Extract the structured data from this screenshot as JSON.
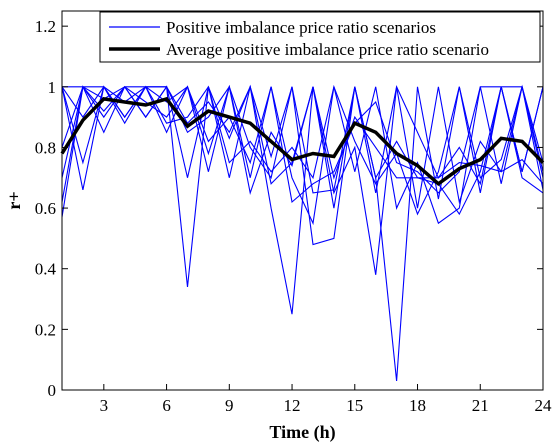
{
  "chart_data": {
    "type": "line",
    "xlabel": "Time (h)",
    "ylabel": "r+",
    "xlim": [
      1,
      24
    ],
    "ylim": [
      0,
      1.25
    ],
    "xticks": [
      3,
      6,
      9,
      12,
      15,
      18,
      21,
      24
    ],
    "xtick_labels": [
      "3",
      "6",
      "9",
      "12",
      "15",
      "18",
      "21",
      "24"
    ],
    "yticks": [
      0,
      0.2,
      0.4,
      0.6,
      0.8,
      1,
      1.2
    ],
    "ytick_labels": [
      "0",
      "0.2",
      "0.4",
      "0.6",
      "0.8",
      "1",
      "1.2"
    ],
    "grid": false,
    "legend_position": "top-right",
    "x": [
      1,
      2,
      3,
      4,
      5,
      6,
      7,
      8,
      9,
      10,
      11,
      12,
      13,
      14,
      15,
      16,
      17,
      18,
      19,
      20,
      21,
      22,
      23,
      24
    ],
    "scenario_color": "#0000ff",
    "average_color": "#000000",
    "legend": {
      "scenarios_label": "Positive imbalance price ratio scenarios",
      "average_label": "Average positive imbalance price ratio scenario"
    },
    "series": [
      {
        "name": "Positive imbalance price ratio scenarios",
        "values": [
          0.57,
          1.0,
          0.9,
          1.0,
          0.9,
          1.0,
          0.34,
          1.0,
          0.83,
          1.0,
          0.6,
          0.25,
          1.0,
          0.6,
          1.0,
          0.7,
          0.03,
          1.0,
          0.63,
          1.0,
          0.65,
          1.0,
          0.7,
          0.65
        ]
      },
      {
        "name": "",
        "values": [
          1.0,
          0.75,
          1.0,
          0.88,
          1.0,
          0.85,
          1.0,
          0.78,
          1.0,
          0.7,
          1.0,
          0.7,
          0.55,
          1.0,
          0.72,
          1.0,
          0.6,
          0.75,
          0.55,
          0.6,
          1.0,
          0.68,
          1.0,
          0.75
        ]
      },
      {
        "name": "",
        "values": [
          0.7,
          1.0,
          0.85,
          1.0,
          0.95,
          0.9,
          1.0,
          0.82,
          0.9,
          0.75,
          1.0,
          0.62,
          0.68,
          0.72,
          0.88,
          0.95,
          0.75,
          0.72,
          0.65,
          0.72,
          1.0,
          1.0,
          1.0,
          0.7
        ]
      },
      {
        "name": "",
        "values": [
          1.0,
          0.66,
          1.0,
          0.9,
          1.0,
          0.88,
          0.9,
          1.0,
          0.7,
          1.0,
          0.77,
          1.0,
          0.48,
          0.5,
          1.0,
          0.65,
          1.0,
          0.85,
          0.7,
          0.8,
          0.68,
          1.0,
          0.72,
          1.0
        ]
      },
      {
        "name": "",
        "values": [
          0.62,
          1.0,
          0.92,
          1.0,
          1.0,
          1.0,
          0.85,
          0.9,
          1.0,
          0.65,
          0.85,
          0.74,
          1.0,
          0.65,
          0.8,
          0.38,
          1.0,
          0.6,
          1.0,
          0.62,
          0.82,
          0.72,
          0.76,
          0.68
        ]
      },
      {
        "name": "",
        "values": [
          1.0,
          0.9,
          1.0,
          0.95,
          1.0,
          1.0,
          0.7,
          1.0,
          0.75,
          0.82,
          0.72,
          0.8,
          0.7,
          1.0,
          0.82,
          0.68,
          0.78,
          0.58,
          0.72,
          1.0,
          0.7,
          0.76,
          1.0,
          0.72
        ]
      },
      {
        "name": "",
        "values": [
          0.8,
          1.0,
          1.0,
          0.9,
          1.0,
          0.95,
          1.0,
          0.72,
          1.0,
          0.8,
          0.7,
          1.0,
          0.65,
          0.66,
          1.0,
          0.7,
          0.82,
          0.7,
          0.68,
          0.58,
          0.72,
          1.0,
          0.72,
          1.0
        ]
      },
      {
        "name": "",
        "values": [
          1.0,
          1.0,
          0.96,
          1.0,
          0.9,
          1.0,
          0.88,
          0.95,
          0.85,
          1.0,
          0.68,
          0.75,
          1.0,
          0.7,
          0.9,
          0.8,
          0.7,
          0.7,
          0.7,
          0.75,
          0.74,
          0.72,
          1.0,
          0.66
        ]
      },
      {
        "name": "Average positive imbalance price ratio scenario",
        "values": [
          0.78,
          0.89,
          0.96,
          0.95,
          0.94,
          0.96,
          0.87,
          0.92,
          0.9,
          0.88,
          0.82,
          0.76,
          0.78,
          0.77,
          0.88,
          0.85,
          0.78,
          0.74,
          0.68,
          0.73,
          0.76,
          0.83,
          0.82,
          0.75
        ]
      }
    ]
  }
}
